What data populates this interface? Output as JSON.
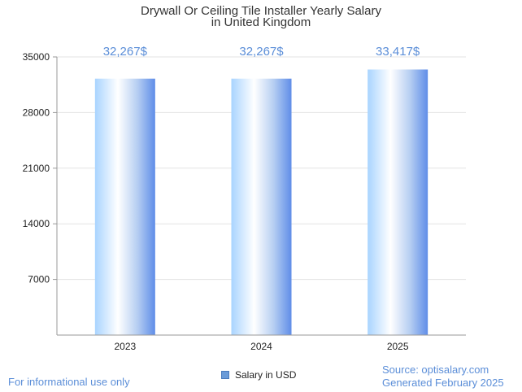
{
  "chart_data": {
    "type": "bar",
    "title": "Drywall Or Ceiling Tile Installer Yearly Salary",
    "subtitle": "in United Kingdom",
    "categories": [
      "2023",
      "2024",
      "2025"
    ],
    "series": [
      {
        "name": "Salary in USD",
        "values": [
          32267,
          32267,
          33417
        ],
        "labels": [
          "32,267$",
          "32,267$",
          "33,417$"
        ]
      }
    ],
    "y_ticks": [
      7000,
      14000,
      21000,
      28000,
      35000
    ],
    "y_tick_labels": [
      "7000",
      "14000",
      "21000",
      "28000",
      "35000"
    ],
    "ylim": [
      0,
      35000
    ],
    "grid": true,
    "legend_position": "bottom-center",
    "colors": {
      "bar_light": "#ffffff",
      "bar_mid": "#a9d4ff",
      "bar_dark": "#5f8de8",
      "data_label": "#5b8ed8",
      "grid": "#e3e3e3",
      "axis": "#999999"
    }
  },
  "legend": {
    "label": "Salary in USD"
  },
  "footer": {
    "disclaimer": "For informational use only",
    "source": "Source: optisalary.com",
    "generated": "Generated February 2025"
  }
}
